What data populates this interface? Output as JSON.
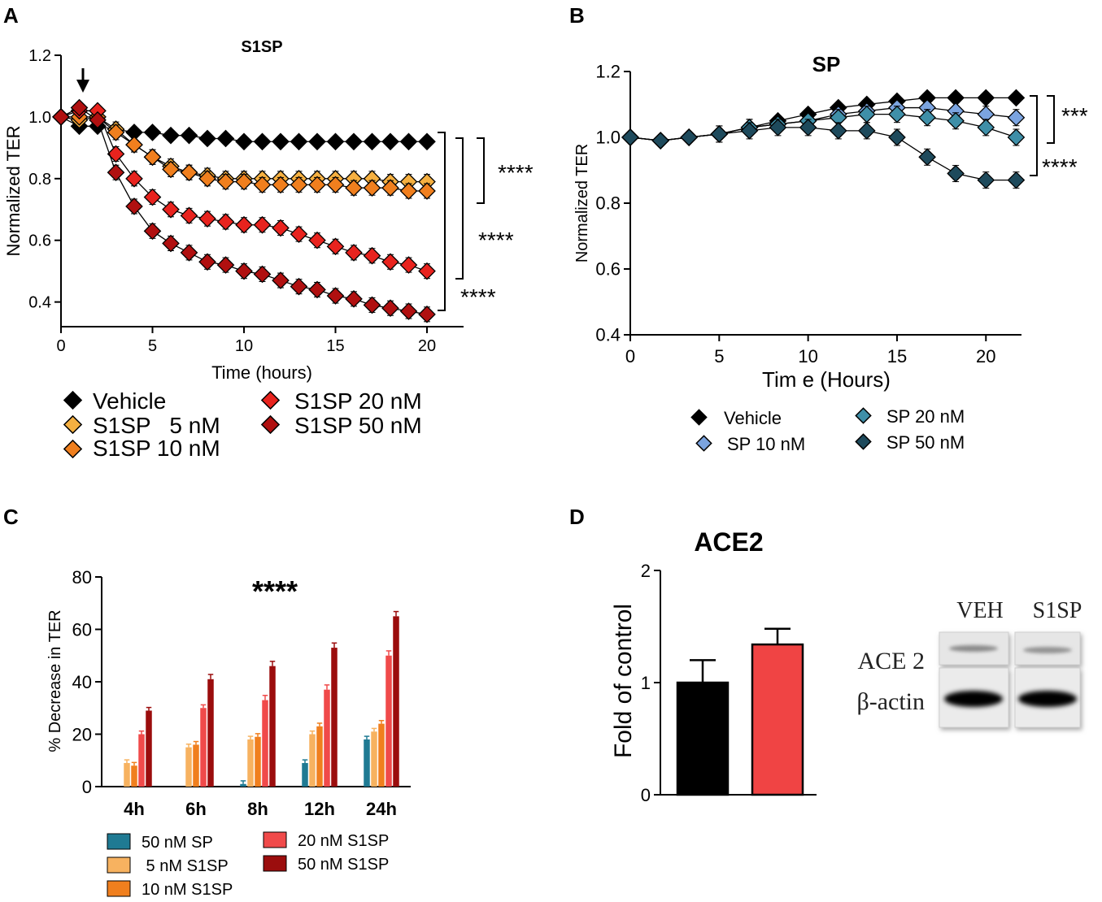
{
  "panels": {
    "A": {
      "letter": "A",
      "chart_data": {
        "type": "line",
        "title": "S1SP",
        "xlabel": "Time (hours)",
        "ylabel": "Normalized TER",
        "xlim": [
          0,
          22
        ],
        "ylim": [
          0.32,
          1.2
        ],
        "xticks": [
          0,
          5,
          10,
          15,
          20
        ],
        "yticks": [
          0.4,
          0.6,
          0.8,
          1.0,
          1.2
        ],
        "ytick_labels": [
          "0.4",
          "0.6",
          "0.8",
          "1.0",
          "1.2"
        ],
        "arrow_at_x": 1.2,
        "significance": [
          "****",
          "****",
          "****"
        ],
        "x": [
          0,
          1,
          2,
          3,
          4,
          5,
          6,
          7,
          8,
          9,
          10,
          11,
          12,
          13,
          14,
          15,
          16,
          17,
          18,
          19,
          20
        ],
        "series": [
          {
            "name": "Vehicle",
            "color": "#000000",
            "values": [
              1.0,
              0.97,
              0.97,
              0.96,
              0.95,
              0.95,
              0.94,
              0.94,
              0.93,
              0.93,
              0.92,
              0.92,
              0.92,
              0.92,
              0.92,
              0.92,
              0.92,
              0.92,
              0.92,
              0.92,
              0.92
            ]
          },
          {
            "name": "S1SP   5 nM",
            "color": "#f5b041",
            "values": [
              1.0,
              0.99,
              1.0,
              0.96,
              0.91,
              0.87,
              0.84,
              0.82,
              0.81,
              0.8,
              0.8,
              0.8,
              0.8,
              0.8,
              0.8,
              0.8,
              0.8,
              0.8,
              0.79,
              0.79,
              0.79
            ]
          },
          {
            "name": "S1SP 10 nM",
            "color": "#f07f1e",
            "values": [
              1.0,
              1.0,
              1.0,
              0.95,
              0.91,
              0.87,
              0.83,
              0.82,
              0.8,
              0.79,
              0.79,
              0.78,
              0.78,
              0.78,
              0.78,
              0.78,
              0.77,
              0.77,
              0.77,
              0.76,
              0.76
            ]
          },
          {
            "name": "S1SP 20 nM",
            "color": "#e8231e",
            "values": [
              1.0,
              1.02,
              1.02,
              0.88,
              0.8,
              0.74,
              0.7,
              0.68,
              0.67,
              0.66,
              0.65,
              0.65,
              0.64,
              0.62,
              0.6,
              0.58,
              0.56,
              0.55,
              0.53,
              0.52,
              0.5
            ]
          },
          {
            "name": "S1SP 50 nM",
            "color": "#b01010",
            "values": [
              1.0,
              1.03,
              0.99,
              0.82,
              0.71,
              0.63,
              0.59,
              0.56,
              0.53,
              0.52,
              0.5,
              0.49,
              0.47,
              0.45,
              0.44,
              0.42,
              0.41,
              0.39,
              0.38,
              0.37,
              0.36
            ]
          }
        ]
      }
    },
    "B": {
      "letter": "B",
      "chart_data": {
        "type": "line",
        "title": "SP",
        "xlabel": "Tim e (Hours)",
        "ylabel": "Normalized TER",
        "xlim": [
          0,
          22
        ],
        "ylim": [
          0.4,
          1.2
        ],
        "xticks": [
          0,
          5,
          10,
          15,
          20
        ],
        "yticks": [
          0.4,
          0.6,
          0.8,
          1.0,
          1.2
        ],
        "ytick_labels": [
          "0.4",
          "0.6",
          "0.8",
          "1.0",
          "1.2"
        ],
        "significance": [
          "***",
          "****"
        ],
        "x": [
          0,
          1.7,
          3.3,
          5,
          6.7,
          8.3,
          10,
          11.7,
          13.3,
          15,
          16.7,
          18.3,
          20,
          21.7
        ],
        "series": [
          {
            "name": "Vehicle",
            "color": "#000000",
            "values": [
              1.0,
              0.99,
              1.0,
              1.01,
              1.03,
              1.05,
              1.07,
              1.09,
              1.1,
              1.11,
              1.12,
              1.12,
              1.12,
              1.12
            ]
          },
          {
            "name": "SP 10 nM",
            "color": "#7ba4e0",
            "values": [
              1.0,
              0.99,
              1.0,
              1.01,
              1.03,
              1.04,
              1.05,
              1.07,
              1.08,
              1.09,
              1.09,
              1.08,
              1.07,
              1.06
            ]
          },
          {
            "name": "SP 20 nM",
            "color": "#3f8fa8",
            "values": [
              1.0,
              0.99,
              1.0,
              1.01,
              1.03,
              1.04,
              1.05,
              1.06,
              1.07,
              1.07,
              1.06,
              1.05,
              1.03,
              1.0
            ]
          },
          {
            "name": "SP 50 nM",
            "color": "#1e4a5c",
            "values": [
              1.0,
              0.99,
              1.0,
              1.01,
              1.02,
              1.03,
              1.03,
              1.02,
              1.02,
              1.0,
              0.94,
              0.89,
              0.87,
              0.87
            ]
          }
        ]
      }
    },
    "C": {
      "letter": "C",
      "chart_data": {
        "type": "bar",
        "title": "****",
        "xlabel": "",
        "ylabel": "% Decrease in TER",
        "ylim": [
          0,
          80
        ],
        "yticks": [
          0,
          20,
          40,
          60,
          80
        ],
        "categories": [
          "4h",
          "6h",
          "8h",
          "12h",
          "24h"
        ],
        "series": [
          {
            "name": "50 nM SP",
            "color": "#1f7a93",
            "values": [
              0,
              0,
              1,
              9,
              18
            ]
          },
          {
            "name": " 5 nM S1SP",
            "color": "#f7b260",
            "values": [
              9,
              15,
              18,
              20,
              21
            ]
          },
          {
            "name": "10 nM S1SP",
            "color": "#f07f1e",
            "values": [
              8,
              16,
              19,
              23,
              24
            ]
          },
          {
            "name": "20 nM S1SP",
            "color": "#f04a4a",
            "values": [
              20,
              30,
              33,
              37,
              50
            ]
          },
          {
            "name": "50 nM S1SP",
            "color": "#9b0d0d",
            "values": [
              29,
              41,
              46,
              53,
              65
            ]
          }
        ]
      }
    },
    "D": {
      "letter": "D",
      "chart_data": {
        "type": "bar",
        "title": "ACE2",
        "ylabel": "Fold of control",
        "ylim": [
          0,
          2
        ],
        "yticks": [
          0,
          1,
          2
        ],
        "categories": [
          "VEH",
          "S1SP"
        ],
        "values": [
          1.0,
          1.34
        ],
        "errors": [
          0.2,
          0.14
        ],
        "colors": [
          "#000000",
          "#f04444"
        ]
      },
      "blot": {
        "lane_labels": [
          "VEH",
          "S1SP"
        ],
        "row_labels": [
          "ACE 2",
          "β-actin"
        ]
      }
    }
  }
}
